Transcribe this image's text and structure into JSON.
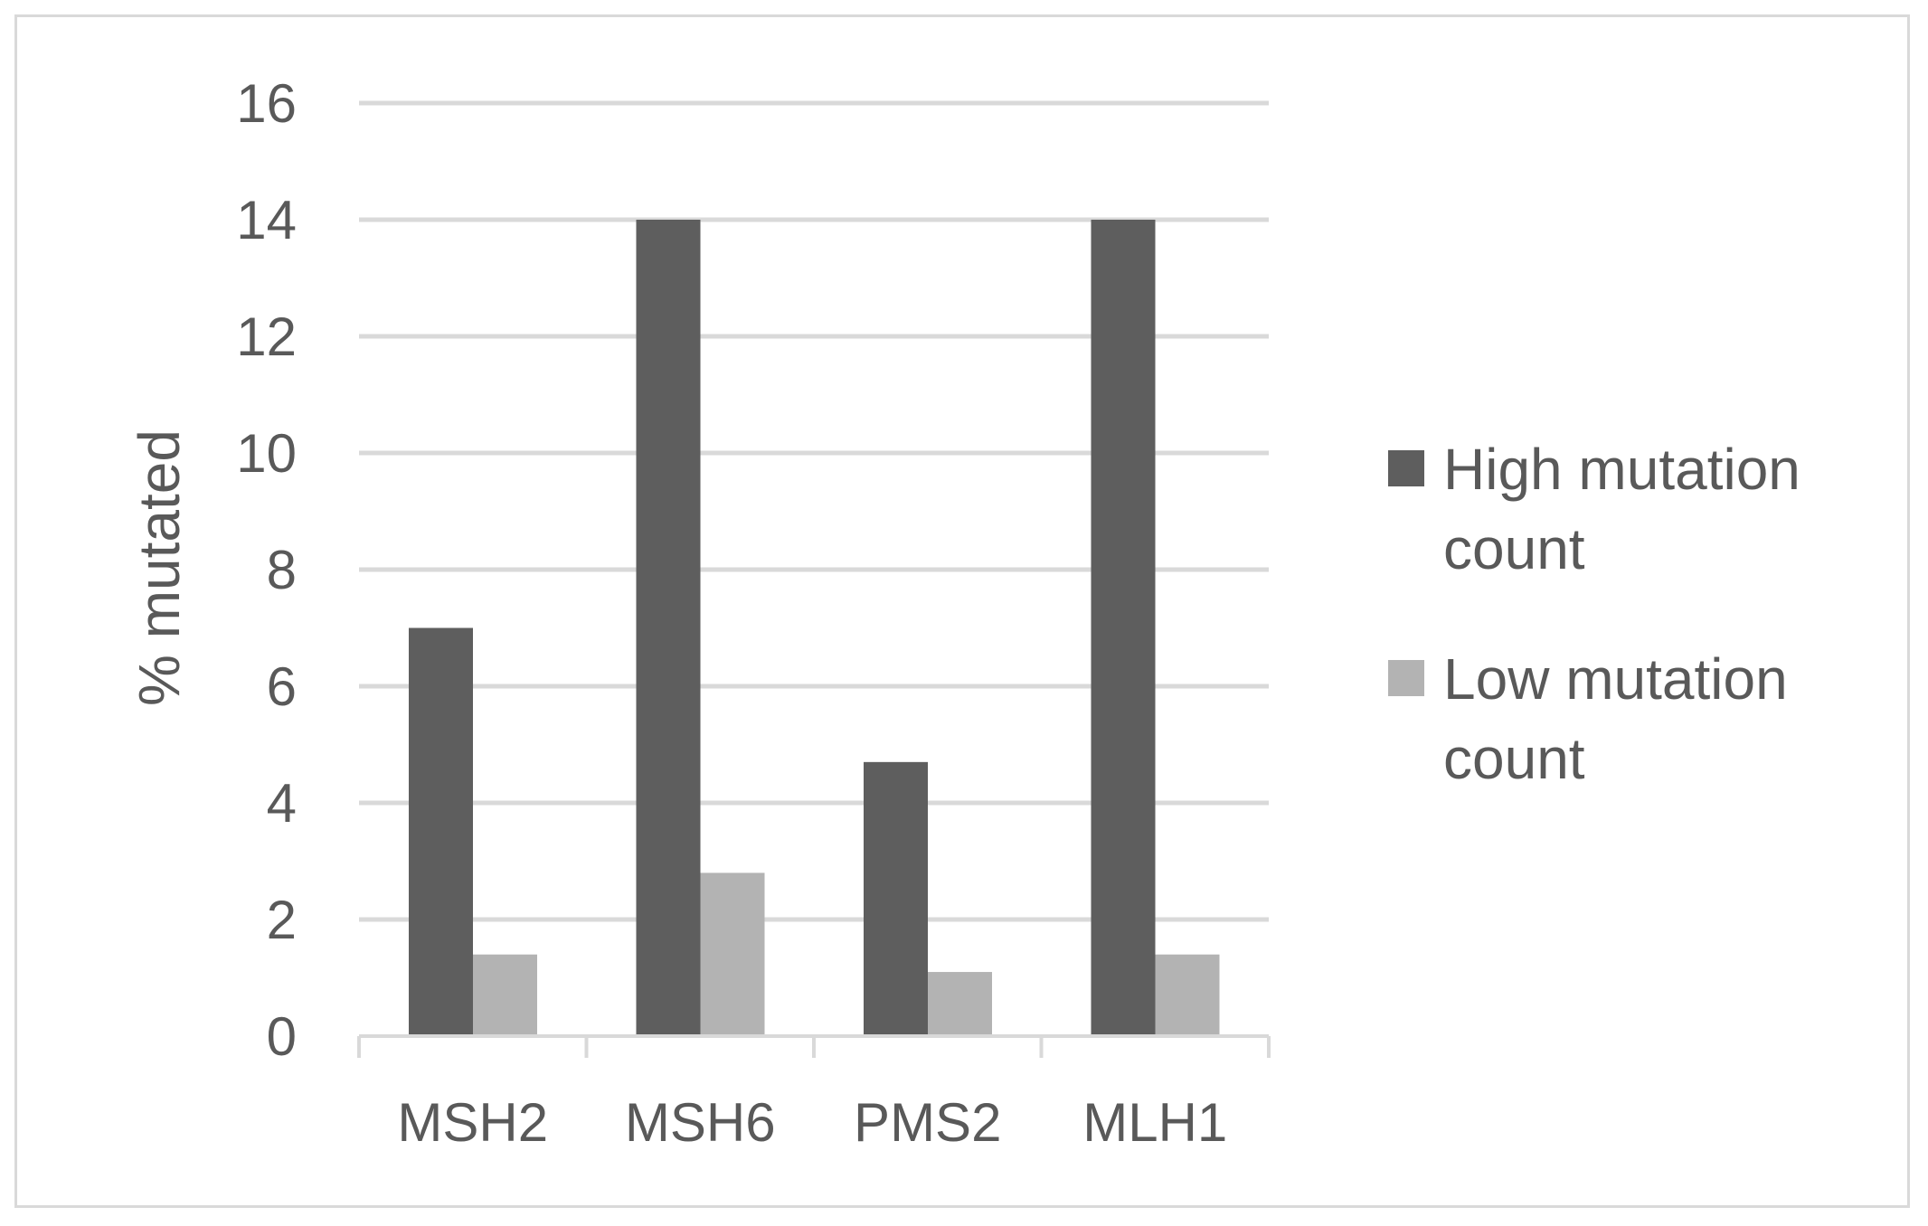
{
  "chart_data": {
    "type": "bar",
    "categories": [
      "MSH2",
      "MSH6",
      "PMS2",
      "MLH1"
    ],
    "series": [
      {
        "name": "High mutation count",
        "values": [
          7,
          14,
          4.7,
          14
        ],
        "color": "#5e5e5e"
      },
      {
        "name": "Low mutation count",
        "values": [
          1.4,
          2.8,
          1.1,
          1.4
        ],
        "color": "#b3b3b3"
      }
    ],
    "ylabel": "% mutated",
    "ylim": [
      0,
      16
    ],
    "yticks": [
      "0",
      "2",
      "4",
      "6",
      "8",
      "10",
      "12",
      "14",
      "16"
    ],
    "grid": true,
    "gridline_color": "#d9d9d9",
    "legend_position": "right",
    "legend": [
      {
        "line1": "High mutation",
        "line2": "count"
      },
      {
        "line1": "Low mutation",
        "line2": "count"
      }
    ]
  }
}
